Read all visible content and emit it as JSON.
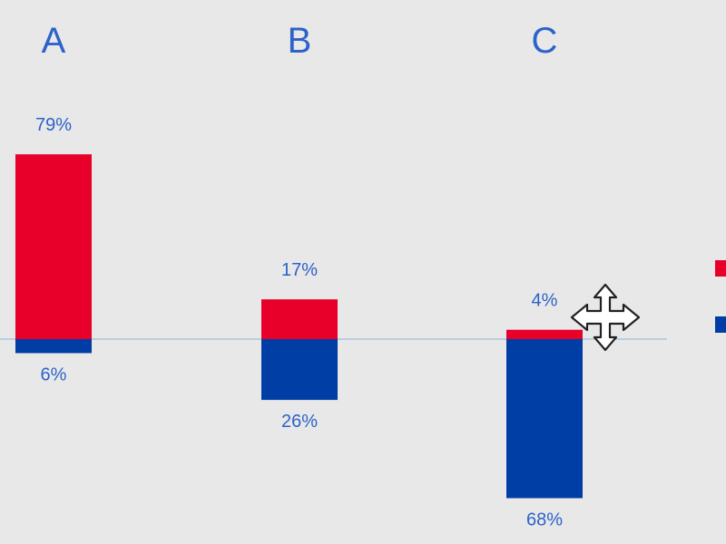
{
  "chart_data": {
    "type": "bar",
    "categories": [
      "A",
      "B",
      "C"
    ],
    "series": [
      {
        "color": "#e8002a",
        "values": [
          79,
          17,
          4
        ],
        "labels": [
          "79%",
          "17%",
          "4%"
        ],
        "direction": "up"
      },
      {
        "color": "#003da5",
        "values": [
          6,
          26,
          68
        ],
        "labels": [
          "6%",
          "26%",
          "68%"
        ],
        "direction": "down"
      }
    ],
    "value_unit": "%",
    "ylim": [
      -68,
      79
    ],
    "grid": false,
    "baseline_color": "#a9c6dd",
    "label_color": "#2c63c9",
    "legend": {
      "placement": "right",
      "entries": [
        {
          "color": "#e8002a"
        },
        {
          "color": "#003da5"
        }
      ]
    }
  },
  "overlay": {
    "cursor_icon": "move-cursor-icon"
  }
}
